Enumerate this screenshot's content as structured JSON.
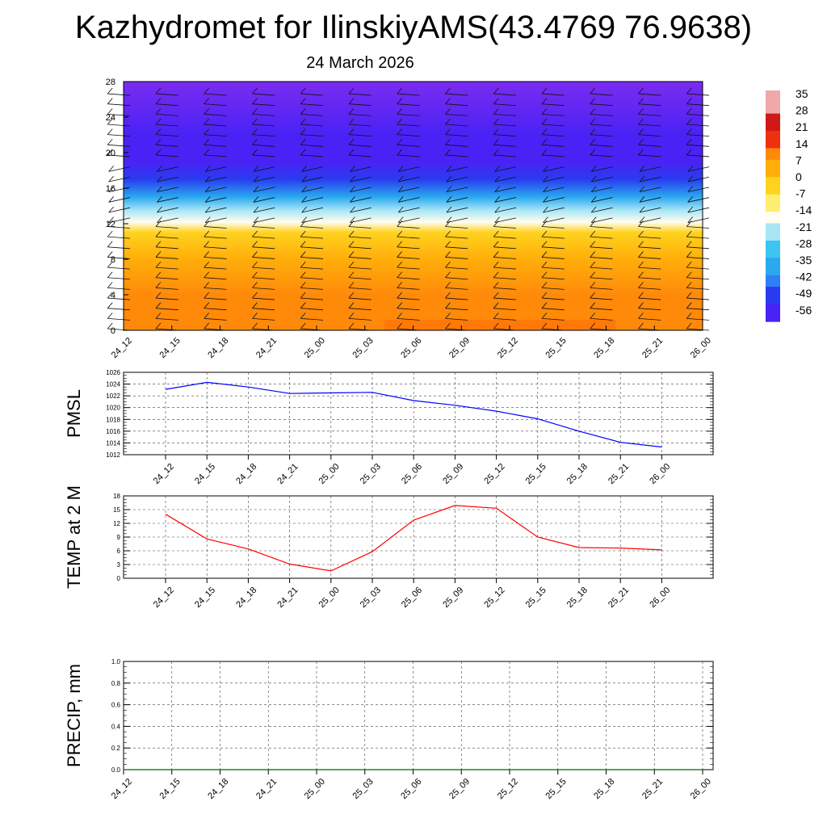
{
  "title": "Kazhydromet for IlinskiyAMS(43.4769 76.9638)",
  "date": "24 March 2026",
  "chart_data": [
    {
      "type": "heatmap",
      "name": "vertical temperature and wind cross-section",
      "x_labels": [
        "24_12",
        "24_15",
        "24_18",
        "24_21",
        "25_00",
        "25_03",
        "25_06",
        "25_09",
        "25_12",
        "25_15",
        "25_18",
        "25_21",
        "26_00"
      ],
      "y_ticks": [
        0,
        4,
        8,
        12,
        16,
        20,
        24,
        28
      ],
      "ylim": [
        0,
        28
      ],
      "colorbar": {
        "labels": [
          "35",
          "28",
          "21",
          "14",
          "7",
          "0",
          "-7",
          "-14",
          "-21",
          "-28",
          "-35",
          "-42",
          "-49",
          "-56"
        ],
        "stops": [
          {
            "value": -63,
            "color": "#7a2cf0"
          },
          {
            "value": -56,
            "color": "#4a22f5"
          },
          {
            "value": -49,
            "color": "#2a3cf0"
          },
          {
            "value": -42,
            "color": "#2f7ff5"
          },
          {
            "value": -35,
            "color": "#2aa8f0"
          },
          {
            "value": -28,
            "color": "#3cc4f2"
          },
          {
            "value": -21,
            "color": "#a8e6f6"
          },
          {
            "value": -14,
            "color": "#fffdf0"
          },
          {
            "value": -7,
            "color": "#ffee70"
          },
          {
            "value": 0,
            "color": "#ffd21e"
          },
          {
            "value": 7,
            "color": "#ffae0a"
          },
          {
            "value": 14,
            "color": "#ff8a0a"
          },
          {
            "value": 21,
            "color": "#ee3010"
          },
          {
            "value": 28,
            "color": "#d01818"
          },
          {
            "value": 35,
            "color": "#f0a8a8"
          }
        ]
      },
      "profile": [
        {
          "alt": 0,
          "temp": 14
        },
        {
          "alt": 4,
          "temp": 9
        },
        {
          "alt": 8,
          "temp": 3
        },
        {
          "alt": 11,
          "temp": -4
        },
        {
          "alt": 12.2,
          "temp": -16
        },
        {
          "alt": 13.5,
          "temp": -25
        },
        {
          "alt": 15,
          "temp": -38
        },
        {
          "alt": 17,
          "temp": -54
        },
        {
          "alt": 19,
          "temp": -62
        },
        {
          "alt": 22,
          "temp": -58
        },
        {
          "alt": 28,
          "temp": -63
        }
      ]
    },
    {
      "type": "line",
      "name": "PMSL",
      "ylabel": "PMSL",
      "x": [
        "24_12",
        "24_15",
        "24_18",
        "24_21",
        "25_00",
        "25_03",
        "25_06",
        "25_09",
        "25_12",
        "25_15",
        "25_18",
        "25_21",
        "26_00"
      ],
      "values": [
        1023.1,
        1024.3,
        1023.5,
        1022.4,
        1022.5,
        1022.6,
        1021.2,
        1020.4,
        1019.4,
        1018.1,
        1016.0,
        1014.1,
        1013.3
      ],
      "ylim": [
        1012,
        1026
      ],
      "y_ticks": [
        "1012",
        "1014",
        "1016",
        "1018",
        "1020",
        "1022",
        "1024",
        "1026"
      ],
      "color": "#0000ff"
    },
    {
      "type": "line",
      "name": "TEMP at 2 M",
      "ylabel": "TEMP at 2 M",
      "x": [
        "24_12",
        "24_15",
        "24_18",
        "24_21",
        "25_00",
        "25_03",
        "25_06",
        "25_09",
        "25_12",
        "25_15",
        "25_18",
        "25_21",
        "26_00"
      ],
      "values": [
        14.0,
        8.6,
        6.4,
        3.1,
        1.6,
        5.8,
        12.7,
        15.9,
        15.3,
        9.0,
        6.7,
        6.6,
        6.2
      ],
      "ylim": [
        0,
        18
      ],
      "y_ticks": [
        "0",
        "3",
        "6",
        "9",
        "12",
        "15",
        "18"
      ],
      "color": "#ff0000"
    },
    {
      "type": "line",
      "name": "PRECIP, mm",
      "ylabel": "PRECIP, mm",
      "x": [
        "24_12",
        "24_15",
        "24_18",
        "24_21",
        "25_00",
        "25_03",
        "25_06",
        "25_09",
        "25_12",
        "25_15",
        "25_18",
        "25_21",
        "26_00"
      ],
      "values": [
        0,
        0,
        0,
        0,
        0,
        0,
        0,
        0,
        0,
        0,
        0,
        0,
        0
      ],
      "ylim": [
        0,
        1
      ],
      "y_ticks": [
        "0.0",
        "0.2",
        "0.4",
        "0.6",
        "0.8",
        "1.0"
      ],
      "color": "#006400"
    }
  ]
}
